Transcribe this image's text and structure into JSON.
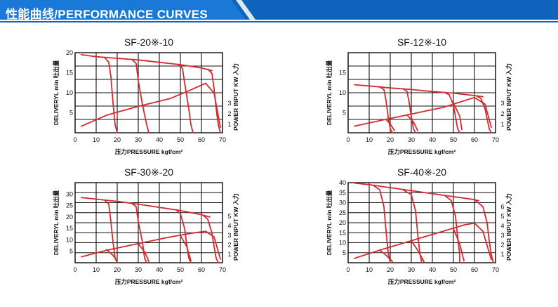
{
  "header": {
    "title": "性能曲线/PERFORMANCE CURVES",
    "accent_color": "#1a78d6",
    "bar_color": "#0f63bd"
  },
  "chart_data": [
    {
      "type": "line",
      "title": "SF-20※-10",
      "xlabel": "压力PRESSURE kgf/cm²",
      "ylabel": "DELIVERYL min 吐出量",
      "y2label": "POWER INPUT KW 入力",
      "xlim": [
        0,
        70
      ],
      "ylim": [
        0,
        20
      ],
      "x_ticks": [
        0,
        10,
        20,
        30,
        40,
        50,
        60,
        70
      ],
      "y_ticks": [
        5,
        10,
        15,
        20
      ],
      "y2_ticks": [
        1,
        2,
        3
      ],
      "grid": true,
      "series": [
        {
          "role": "delivery",
          "x": [
            3,
            10,
            20,
            30,
            40,
            50,
            60,
            65
          ],
          "y": [
            19.5,
            19.0,
            18.6,
            18.2,
            17.6,
            17.0,
            16.2,
            15.5
          ]
        },
        {
          "role": "cutoff-20",
          "x": [
            14,
            16,
            17,
            18,
            19,
            20
          ],
          "y": [
            18.8,
            17.6,
            14.0,
            7.5,
            2.0,
            0
          ]
        },
        {
          "role": "cutoff-35",
          "x": [
            27,
            29,
            30,
            32,
            34,
            35
          ],
          "y": [
            18.3,
            17.3,
            13.0,
            7.0,
            2.0,
            0
          ]
        },
        {
          "role": "cutoff-56",
          "x": [
            49,
            51,
            52,
            54,
            55,
            56
          ],
          "y": [
            17.1,
            16.0,
            12.5,
            6.0,
            2.0,
            0
          ]
        },
        {
          "role": "cutoff-69",
          "x": [
            63,
            65,
            66,
            67,
            68,
            69
          ],
          "y": [
            15.9,
            14.8,
            11.0,
            6.0,
            2.0,
            0
          ]
        },
        {
          "role": "power",
          "x": [
            3,
            15,
            30,
            45,
            55,
            62,
            66,
            69
          ],
          "y": [
            0.6,
            1.6,
            2.4,
            3.1,
            3.9,
            4.5,
            3.6,
            0.5
          ]
        }
      ]
    },
    {
      "type": "line",
      "title": "SF-12※-10",
      "xlabel": "压力PRESSURE kgf/cm²",
      "ylabel": "DELIVERYL min 吐出量",
      "y2label": "POWER INPUT KW 入力",
      "xlim": [
        0,
        70
      ],
      "ylim": [
        0,
        20
      ],
      "x_ticks": [
        0,
        10,
        20,
        30,
        40,
        50,
        60,
        70
      ],
      "y_ticks": [
        5,
        10,
        15
      ],
      "y2_ticks": [
        1,
        2,
        3
      ],
      "grid": true,
      "series": [
        {
          "role": "delivery",
          "x": [
            3,
            10,
            20,
            30,
            40,
            50,
            60,
            64
          ],
          "y": [
            12.0,
            11.7,
            11.2,
            10.8,
            10.3,
            9.9,
            9.3,
            9.0
          ]
        },
        {
          "role": "cutoff-20",
          "x": [
            15,
            17,
            18,
            19,
            20,
            21
          ],
          "y": [
            11.4,
            10.8,
            8.0,
            4.0,
            1.0,
            0
          ]
        },
        {
          "role": "cutoff-32",
          "x": [
            26,
            28,
            29,
            30,
            31,
            32
          ],
          "y": [
            11.0,
            10.3,
            7.5,
            4.0,
            1.0,
            0
          ]
        },
        {
          "role": "cutoff-53",
          "x": [
            46,
            48,
            50,
            51,
            52,
            53
          ],
          "y": [
            10.0,
            9.5,
            7.0,
            4.0,
            1.0,
            0
          ]
        },
        {
          "role": "cutoff-68",
          "x": [
            61,
            63,
            65,
            66,
            67,
            68
          ],
          "y": [
            9.2,
            8.6,
            6.0,
            3.5,
            1.0,
            0
          ]
        },
        {
          "role": "power",
          "x": [
            3,
            15,
            30,
            45,
            55,
            60,
            65,
            68
          ],
          "y": [
            0.6,
            1.1,
            1.7,
            2.3,
            2.9,
            3.2,
            2.6,
            0.5
          ]
        },
        {
          "role": "power-drop",
          "x": [
            18,
            20,
            22
          ],
          "y": [
            1.2,
            0.8,
            0.2
          ]
        },
        {
          "role": "power-drop",
          "x": [
            28,
            31,
            33
          ],
          "y": [
            1.6,
            1.0,
            0.2
          ]
        },
        {
          "role": "power-drop",
          "x": [
            50,
            53,
            54
          ],
          "y": [
            2.7,
            1.5,
            0.3
          ]
        }
      ]
    },
    {
      "type": "line",
      "title": "SF-30※-20",
      "xlabel": "压力PRESSURE kgf/cm²",
      "ylabel": "DELIVERYL min 吐出量",
      "y2label": "POWER INPUT KW 入力",
      "xlim": [
        0,
        70
      ],
      "ylim": [
        0,
        35
      ],
      "x_ticks": [
        0,
        10,
        20,
        30,
        40,
        50,
        60,
        70
      ],
      "y_ticks": [
        5,
        10,
        15,
        20,
        25,
        30
      ],
      "y2_ticks": [
        1,
        2,
        3,
        4,
        5
      ],
      "grid": true,
      "series": [
        {
          "role": "delivery",
          "x": [
            3,
            10,
            20,
            30,
            40,
            50,
            60,
            64
          ],
          "y": [
            28.5,
            27.8,
            26.8,
            25.6,
            24.2,
            22.8,
            21.0,
            20.0
          ]
        },
        {
          "role": "cutoff-20",
          "x": [
            14,
            16,
            17,
            18,
            19,
            20
          ],
          "y": [
            27.4,
            25.5,
            18.0,
            9.0,
            2.0,
            0
          ]
        },
        {
          "role": "cutoff-34",
          "x": [
            27,
            29,
            30,
            32,
            33,
            34
          ],
          "y": [
            25.9,
            24.5,
            18.0,
            9.0,
            2.0,
            0
          ]
        },
        {
          "role": "cutoff-55",
          "x": [
            48,
            50,
            52,
            53,
            54,
            55
          ],
          "y": [
            23.1,
            21.5,
            15.0,
            8.0,
            2.0,
            0
          ]
        },
        {
          "role": "cutoff-68",
          "x": [
            61,
            63,
            65,
            66,
            67,
            68
          ],
          "y": [
            20.6,
            19.0,
            13.0,
            7.0,
            2.0,
            0
          ]
        },
        {
          "role": "power",
          "x": [
            3,
            15,
            30,
            45,
            55,
            62,
            66,
            69
          ],
          "y": [
            0.8,
            1.7,
            2.6,
            3.5,
            4.0,
            4.3,
            3.5,
            0.5
          ]
        },
        {
          "role": "power-drop",
          "x": [
            15,
            18,
            20
          ],
          "y": [
            1.8,
            1.0,
            0.2
          ]
        },
        {
          "role": "power-drop",
          "x": [
            30,
            33,
            35
          ],
          "y": [
            2.6,
            1.5,
            0.2
          ]
        },
        {
          "role": "power-drop",
          "x": [
            50,
            53,
            55
          ],
          "y": [
            3.7,
            2.2,
            0.3
          ]
        }
      ]
    },
    {
      "type": "line",
      "title": "SF-40※-20",
      "xlabel": "压力PRESSURE kgf/cm²",
      "ylabel": "DELIVERYL min 吐出量",
      "y2label": "POWER INPUT KW 入力",
      "xlim": [
        0,
        70
      ],
      "ylim": [
        0,
        40
      ],
      "x_ticks": [
        0,
        10,
        20,
        30,
        40,
        50,
        60,
        70
      ],
      "y_ticks": [
        5,
        10,
        15,
        20,
        25,
        30,
        35,
        40
      ],
      "y2_ticks": [
        1,
        2,
        3,
        4,
        5,
        6
      ],
      "grid": true,
      "series": [
        {
          "role": "delivery",
          "x": [
            3,
            10,
            20,
            30,
            40,
            50,
            60,
            62
          ],
          "y": [
            39.8,
            39.0,
            37.5,
            36.0,
            34.5,
            33.0,
            31.5,
            31.0
          ]
        },
        {
          "role": "cutoff-20",
          "x": [
            12,
            15,
            17,
            18,
            19,
            20
          ],
          "y": [
            38.6,
            36.5,
            28.0,
            16.0,
            5.0,
            0
          ]
        },
        {
          "role": "cutoff-35",
          "x": [
            26,
            30,
            32,
            33,
            34,
            35
          ],
          "y": [
            36.5,
            34.0,
            26.0,
            15.0,
            5.0,
            0
          ]
        },
        {
          "role": "cutoff-53",
          "x": [
            46,
            49,
            51,
            52,
            53,
            53
          ],
          "y": [
            33.5,
            31.0,
            23.0,
            13.0,
            4.0,
            0
          ]
        },
        {
          "role": "cutoff-69",
          "x": [
            60,
            64,
            66,
            67,
            68,
            69
          ],
          "y": [
            31.5,
            28.0,
            20.0,
            11.0,
            4.0,
            0
          ]
        },
        {
          "role": "power",
          "x": [
            3,
            15,
            30,
            45,
            55,
            60,
            64,
            68
          ],
          "y": [
            0.7,
            2.0,
            3.5,
            5.0,
            6.0,
            6.3,
            5.0,
            0.5
          ]
        },
        {
          "role": "power-drop",
          "x": [
            15,
            18,
            21
          ],
          "y": [
            2.0,
            1.2,
            0.2
          ]
        },
        {
          "role": "power-drop",
          "x": [
            30,
            33,
            36
          ],
          "y": [
            3.5,
            2.0,
            0.2
          ]
        },
        {
          "role": "power-drop",
          "x": [
            50,
            53,
            55
          ],
          "y": [
            5.4,
            3.0,
            0.3
          ]
        }
      ]
    }
  ]
}
